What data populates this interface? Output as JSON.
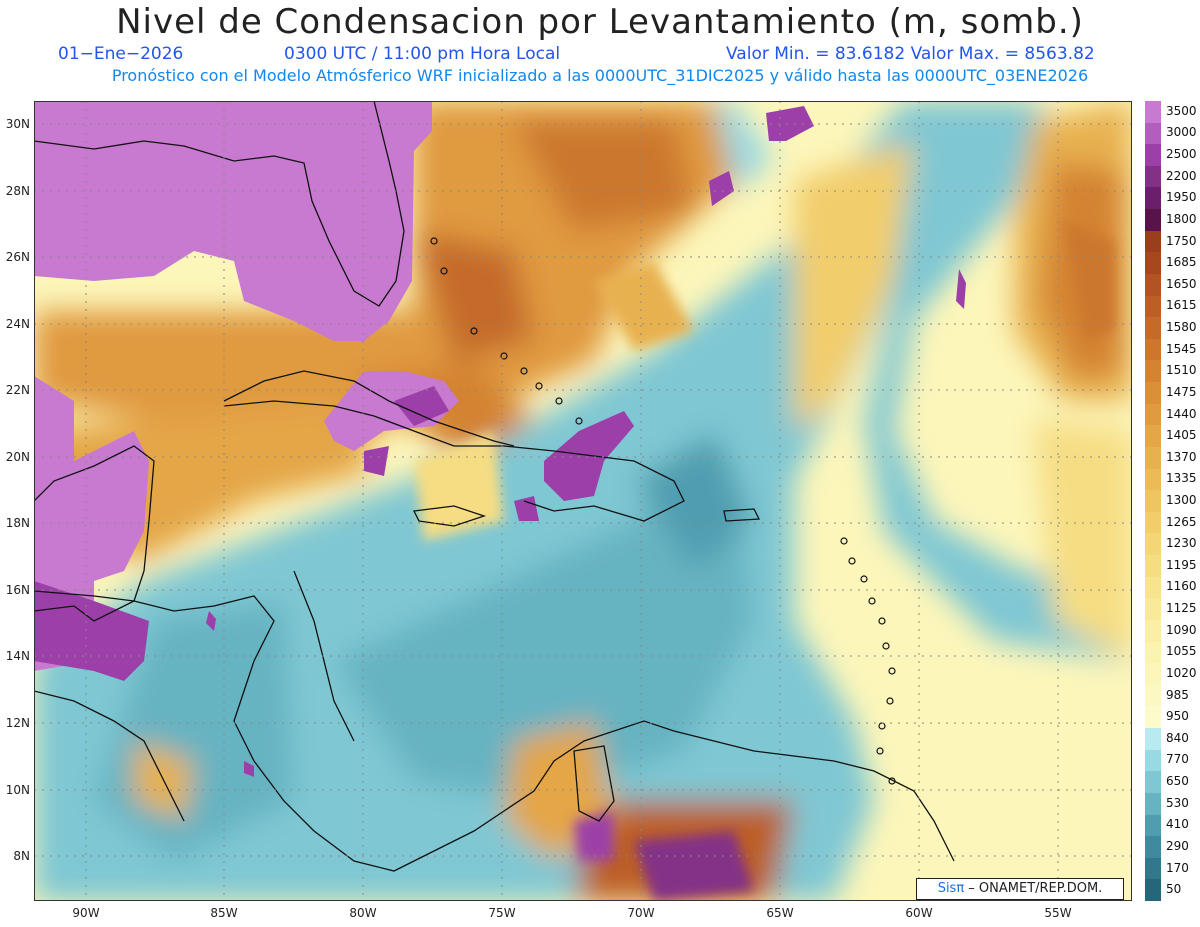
{
  "title": "Nivel de Condensacion por Levantamiento (m, somb.)",
  "date": "01−Ene−2026",
  "time": "0300 UTC / 11:00 pm Hora Local",
  "stats": "Valor Min. = 83.6182   Valor Max. = 8563.82",
  "forecast_line": "Pronóstico con el Modelo Atmósferico WRF inicializado a las 0000UTC_31DIC2025 y válido hasta las   0000UTC_03ENE2026",
  "lat_labels": [
    "30N",
    "28N",
    "26N",
    "24N",
    "22N",
    "20N",
    "18N",
    "16N",
    "14N",
    "12N",
    "10N",
    "8N"
  ],
  "lon_labels": [
    "90W",
    "85W",
    "80W",
    "75W",
    "70W",
    "65W",
    "60W",
    "55W"
  ],
  "colorbar": {
    "labels": [
      "3500",
      "3000",
      "2500",
      "2200",
      "1950",
      "1800",
      "1750",
      "1685",
      "1650",
      "1615",
      "1580",
      "1545",
      "1510",
      "1475",
      "1440",
      "1405",
      "1370",
      "1335",
      "1300",
      "1265",
      "1230",
      "1195",
      "1160",
      "1125",
      "1090",
      "1055",
      "1020",
      "985",
      "950",
      "840",
      "770",
      "650",
      "530",
      "410",
      "290",
      "170",
      "50"
    ],
    "colors": [
      "#c77ad0",
      "#b35dbf",
      "#9c3fa8",
      "#833087",
      "#6a1f6a",
      "#58134a",
      "#9a3f1c",
      "#a5481e",
      "#b15422",
      "#bc5f25",
      "#c56b29",
      "#cc772d",
      "#d48332",
      "#db8f38",
      "#e09a3f",
      "#e4a646",
      "#e8b14f",
      "#ecbb58",
      "#efc462",
      "#f2cd6c",
      "#f4d577",
      "#f6dd83",
      "#f8e48f",
      "#f9ea9a",
      "#faefa5",
      "#fbf3b0",
      "#fcf6ba",
      "#fcf8c3",
      "#fdfacb",
      "#b9eaf0",
      "#98d9e3",
      "#7fc7d3",
      "#66b3c2",
      "#4f9eb0",
      "#3f8a9e",
      "#32778c",
      "#26667a"
    ]
  },
  "credit": {
    "brand": "Sisπ",
    "text": " –  ONAMET/REP.DOM."
  }
}
